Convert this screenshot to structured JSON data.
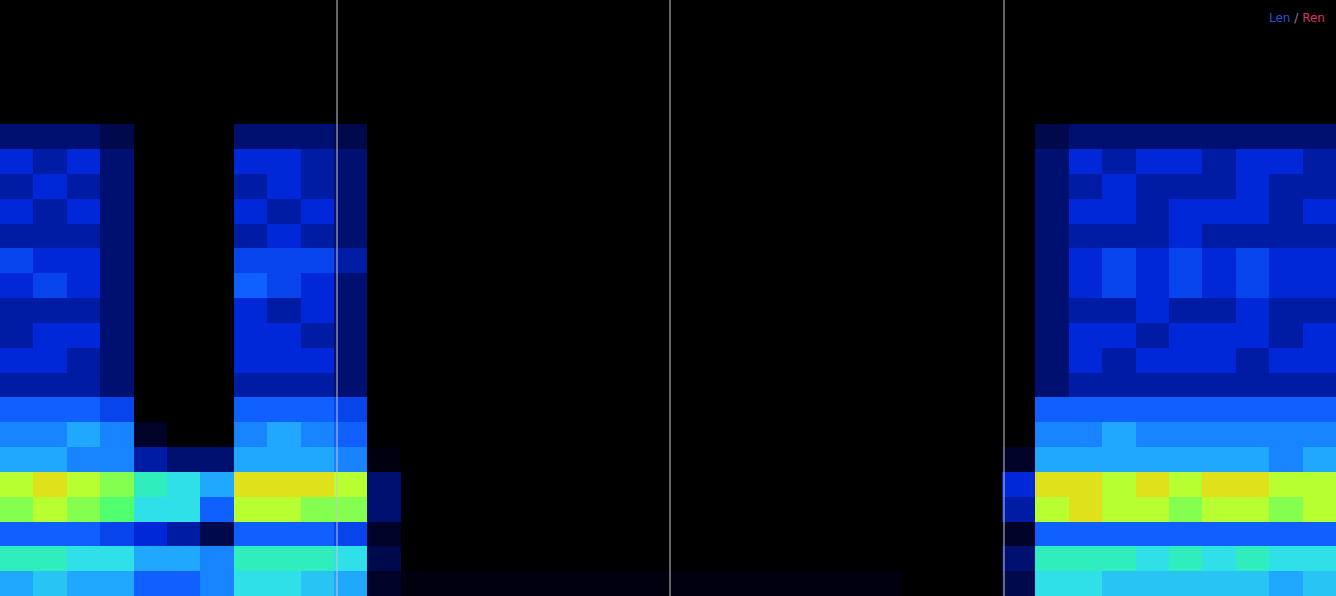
{
  "chart_data": {
    "type": "heatmap",
    "xlim": [
      -0.5,
      39.5
    ],
    "ylim": [
      -0.5,
      23.5
    ],
    "xticks": [],
    "yticks": [],
    "tick_labels": false,
    "grid": false,
    "zlim": [
      0,
      10
    ],
    "vlines": [
      9.59,
      19.56,
      29.56
    ],
    "annotation": {
      "parts": [
        {
          "text": "Len",
          "color": "#2a4fd6"
        },
        {
          "text": " / ",
          "color": "#8a7fa8"
        },
        {
          "text": "Ren",
          "color": "#d6336c"
        }
      ]
    },
    "z": [
      [
        5,
        6.5,
        4,
        8,
        8.5,
        5,
        4.5,
        4,
        2.5,
        3,
        2.5,
        2.5,
        3,
        3.5,
        2.5,
        3,
        2.5,
        3,
        2,
        0,
        0,
        0,
        0,
        0
      ],
      [
        5.5,
        6.5,
        4,
        8.5,
        9,
        5,
        4.5,
        4,
        2.5,
        3,
        3,
        2.5,
        3.5,
        3,
        2.5,
        2.5,
        3,
        2.5,
        2,
        0,
        0,
        0,
        0,
        0
      ],
      [
        5,
        6,
        4,
        8,
        8.5,
        4.5,
        5,
        4,
        2.5,
        2.5,
        3,
        2.5,
        3,
        3,
        2.5,
        3,
        2.5,
        3,
        2,
        0,
        0,
        0,
        0,
        0
      ],
      [
        5,
        6,
        3.5,
        7.5,
        8,
        4.5,
        4.5,
        3.5,
        2,
        2,
        2,
        2,
        2,
        2,
        2,
        2,
        2,
        2,
        1.5,
        0,
        0,
        0,
        0,
        0
      ],
      [
        4,
        5,
        3,
        6,
        6.5,
        2.5,
        1,
        0,
        0,
        0,
        0,
        0,
        0,
        0,
        0,
        0,
        0,
        0,
        0,
        0,
        0,
        0,
        0,
        0
      ],
      [
        4,
        5,
        2.5,
        6,
        6,
        2,
        0,
        0,
        0,
        0,
        0,
        0,
        0,
        0,
        0,
        0,
        0,
        0,
        0,
        0,
        0,
        0,
        0,
        0
      ],
      [
        4.5,
        4.5,
        1.5,
        4,
        5,
        2,
        0,
        0,
        0,
        0,
        0,
        0,
        0,
        0,
        0,
        0,
        0,
        0,
        0,
        0,
        0,
        0,
        0,
        0
      ],
      [
        6,
        6.5,
        4,
        8.5,
        9,
        5,
        4.5,
        4,
        2.5,
        3,
        3,
        3,
        4,
        3.5,
        2.5,
        3,
        2.5,
        3,
        2,
        0,
        0,
        0,
        0,
        0
      ],
      [
        6,
        6.5,
        4,
        8.5,
        9,
        5,
        5,
        4,
        2.5,
        3,
        3,
        2.5,
        3.5,
        3.5,
        3,
        2.5,
        3,
        3,
        2,
        0,
        0,
        0,
        0,
        0
      ],
      [
        5.5,
        6.5,
        4,
        8,
        9,
        5,
        4.5,
        4,
        2.5,
        3,
        2.5,
        3,
        3,
        3.5,
        2.5,
        3,
        2.5,
        2.5,
        2,
        0,
        0,
        0,
        0,
        0
      ],
      [
        5,
        6,
        3.5,
        8,
        8.5,
        4.5,
        4,
        3.5,
        2,
        2,
        2,
        2,
        2,
        2.5,
        2,
        2,
        2,
        2,
        1.5,
        0,
        0,
        0,
        0,
        0
      ],
      [
        1,
        1.5,
        1,
        2,
        2,
        0.5,
        0,
        0,
        0,
        0,
        0,
        0,
        0,
        0,
        0,
        0,
        0,
        0,
        0,
        0,
        0,
        0,
        0,
        0
      ],
      [
        0.5,
        0,
        0,
        0,
        0,
        0,
        0,
        0,
        0,
        0,
        0,
        0,
        0,
        0,
        0,
        0,
        0,
        0,
        0,
        0,
        0,
        0,
        0,
        0
      ],
      [
        0.5,
        0,
        0,
        0,
        0,
        0,
        0,
        0,
        0,
        0,
        0,
        0,
        0,
        0,
        0,
        0,
        0,
        0,
        0,
        0,
        0,
        0,
        0,
        0
      ],
      [
        0.5,
        0,
        0,
        0,
        0,
        0,
        0,
        0,
        0,
        0,
        0,
        0,
        0,
        0,
        0,
        0,
        0,
        0,
        0,
        0,
        0,
        0,
        0,
        0
      ],
      [
        0.5,
        0,
        0,
        0,
        0,
        0,
        0,
        0,
        0,
        0,
        0,
        0,
        0,
        0,
        0,
        0,
        0,
        0,
        0,
        0,
        0,
        0,
        0,
        0
      ],
      [
        0.5,
        0,
        0,
        0,
        0,
        0,
        0,
        0,
        0,
        0,
        0,
        0,
        0,
        0,
        0,
        0,
        0,
        0,
        0,
        0,
        0,
        0,
        0,
        0
      ],
      [
        0.5,
        0,
        0,
        0,
        0,
        0,
        0,
        0,
        0,
        0,
        0,
        0,
        0,
        0,
        0,
        0,
        0,
        0,
        0,
        0,
        0,
        0,
        0,
        0
      ],
      [
        0.5,
        0,
        0,
        0,
        0,
        0,
        0,
        0,
        0,
        0,
        0,
        0,
        0,
        0,
        0,
        0,
        0,
        0,
        0,
        0,
        0,
        0,
        0,
        0
      ],
      [
        0.5,
        0,
        0,
        0,
        0,
        0,
        0,
        0,
        0,
        0,
        0,
        0,
        0,
        0,
        0,
        0,
        0,
        0,
        0,
        0,
        0,
        0,
        0,
        0
      ],
      [
        0.5,
        0,
        0,
        0,
        0,
        0,
        0,
        0,
        0,
        0,
        0,
        0,
        0,
        0,
        0,
        0,
        0,
        0,
        0,
        0,
        0,
        0,
        0,
        0
      ],
      [
        0.5,
        0,
        0,
        0,
        0,
        0,
        0,
        0,
        0,
        0,
        0,
        0,
        0,
        0,
        0,
        0,
        0,
        0,
        0,
        0,
        0,
        0,
        0,
        0
      ],
      [
        0.5,
        0,
        0,
        0,
        0,
        0,
        0,
        0,
        0,
        0,
        0,
        0,
        0,
        0,
        0,
        0,
        0,
        0,
        0,
        0,
        0,
        0,
        0,
        0
      ],
      [
        0.5,
        0,
        0,
        0,
        0,
        0,
        0,
        0,
        0,
        0,
        0,
        0,
        0,
        0,
        0,
        0,
        0,
        0,
        0,
        0,
        0,
        0,
        0,
        0
      ],
      [
        0.5,
        0,
        0,
        0,
        0,
        0,
        0,
        0,
        0,
        0,
        0,
        0,
        0,
        0,
        0,
        0,
        0,
        0,
        0,
        0,
        0,
        0,
        0,
        0
      ],
      [
        0.5,
        0,
        0,
        0,
        0,
        0,
        0,
        0,
        0,
        0,
        0,
        0,
        0,
        0,
        0,
        0,
        0,
        0,
        0,
        0,
        0,
        0,
        0,
        0
      ],
      [
        0.5,
        0,
        0,
        0,
        0,
        0,
        0,
        0,
        0,
        0,
        0,
        0,
        0,
        0,
        0,
        0,
        0,
        0,
        0,
        0,
        0,
        0,
        0,
        0
      ],
      [
        0,
        0,
        0,
        0,
        0,
        0,
        0,
        0,
        0,
        0,
        0,
        0,
        0,
        0,
        0,
        0,
        0,
        0,
        0,
        0,
        0,
        0,
        0,
        0
      ],
      [
        0,
        0,
        0,
        0,
        0,
        0,
        0,
        0,
        0,
        0,
        0,
        0,
        0,
        0,
        0,
        0,
        0,
        0,
        0,
        0,
        0,
        0,
        0,
        0
      ],
      [
        0,
        0,
        0,
        0,
        0,
        0,
        0,
        0,
        0,
        0,
        0,
        0,
        0,
        0,
        0,
        0,
        0,
        0,
        0,
        0,
        0,
        0,
        0,
        0
      ],
      [
        1.5,
        2,
        1,
        2.5,
        3,
        1,
        0,
        0,
        0,
        0,
        0,
        0,
        0,
        0,
        0,
        0,
        0,
        0,
        0,
        0,
        0,
        0,
        0,
        0
      ],
      [
        6,
        6.5,
        4,
        8.5,
        9,
        5,
        4.5,
        4,
        2,
        2,
        2,
        2,
        2,
        2,
        2,
        2,
        2,
        2,
        1.5,
        0,
        0,
        0,
        0,
        0
      ],
      [
        6,
        6.5,
        4,
        9,
        9,
        5,
        4.5,
        4,
        2.5,
        3,
        3,
        2.5,
        3,
        3,
        2.5,
        3,
        2.5,
        3,
        2,
        0,
        0,
        0,
        0,
        0
      ],
      [
        5.5,
        6.5,
        4,
        8.5,
        8.5,
        5,
        5,
        4,
        2.5,
        2.5,
        3,
        2.5,
        3.5,
        3.5,
        2.5,
        3,
        3,
        2.5,
        2,
        0,
        0,
        0,
        0,
        0
      ],
      [
        5.5,
        6,
        4,
        8.5,
        9,
        5,
        4.5,
        4,
        2.5,
        3,
        2.5,
        3,
        3,
        3,
        2.5,
        2.5,
        2.5,
        3,
        2,
        0,
        0,
        0,
        0,
        0
      ],
      [
        5.5,
        6.5,
        4,
        8,
        8.5,
        5,
        4.5,
        4,
        2.5,
        3,
        3,
        2.5,
        3.5,
        3.5,
        3,
        3,
        2.5,
        3,
        2,
        0,
        0,
        0,
        0,
        0
      ],
      [
        5.5,
        6,
        4,
        8.5,
        9,
        5,
        4.5,
        4,
        2.5,
        3,
        3,
        2.5,
        3,
        3,
        2.5,
        3,
        2.5,
        2.5,
        2,
        0,
        0,
        0,
        0,
        0
      ],
      [
        5.5,
        6.5,
        4,
        8.5,
        9,
        5,
        4.5,
        4,
        2.5,
        2.5,
        3,
        3,
        3.5,
        3.5,
        2.5,
        3,
        3,
        3,
        2,
        0,
        0,
        0,
        0,
        0
      ],
      [
        5,
        6,
        4,
        8,
        8.5,
        4.5,
        4.5,
        4,
        2.5,
        3,
        2.5,
        2.5,
        3,
        3,
        2.5,
        2.5,
        2.5,
        3,
        2,
        0,
        0,
        0,
        0,
        0
      ],
      [
        5.5,
        6,
        4,
        8.5,
        8.5,
        5,
        4.5,
        4,
        2.5,
        3,
        3,
        2.5,
        3,
        3,
        2.5,
        3,
        2.5,
        2.5,
        2,
        0,
        0,
        0,
        0,
        0
      ]
    ]
  }
}
